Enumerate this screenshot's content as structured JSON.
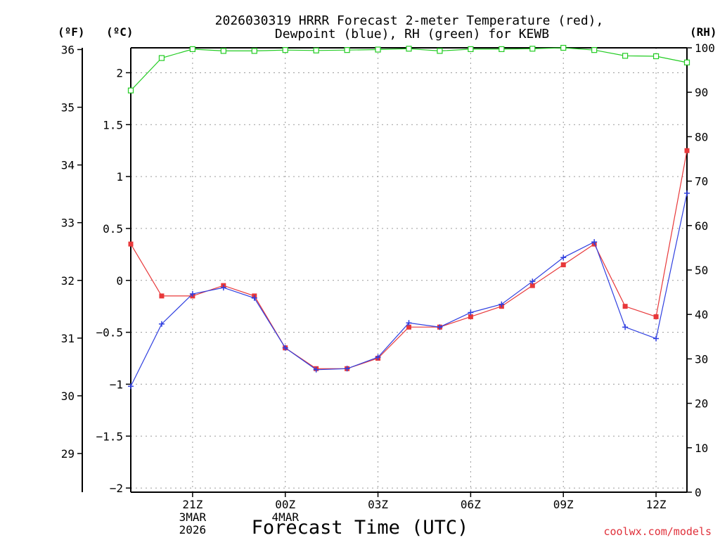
{
  "chart_data": {
    "type": "line",
    "title_line1": "2026030319 HRRR Forecast 2-meter Temperature (red),",
    "title_line2": "Dewpoint (blue), RH (green) for KEWB",
    "xlabel": "Forecast Time (UTC)",
    "unit_f": "(ºF)",
    "unit_c": "(ºC)",
    "unit_rh": "(RH)",
    "credit": "coolwx.com/models",
    "x_hours": [
      19,
      20,
      21,
      22,
      23,
      24,
      25,
      26,
      27,
      28,
      29,
      30,
      31,
      32,
      33,
      34,
      35,
      36,
      37
    ],
    "x_ticks": [
      {
        "hour": 21,
        "lines": [
          "21Z",
          "3MAR",
          "2026"
        ]
      },
      {
        "hour": 24,
        "lines": [
          "00Z",
          "4MAR"
        ]
      },
      {
        "hour": 27,
        "lines": [
          "03Z"
        ]
      },
      {
        "hour": 30,
        "lines": [
          "06Z"
        ]
      },
      {
        "hour": 33,
        "lines": [
          "09Z"
        ]
      },
      {
        "hour": 36,
        "lines": [
          "12Z"
        ]
      }
    ],
    "x_range": [
      19,
      37
    ],
    "ylim_c": [
      -2.04,
      2.24
    ],
    "ylim_f": [
      28.33,
      36.03
    ],
    "ylim_rh": [
      0,
      100
    ],
    "y_ticks_c": [
      "2",
      "1.5",
      "1",
      "0.5",
      "0",
      "−0.5",
      "−1",
      "−1.5",
      "−2"
    ],
    "y_tick_values_c": [
      2,
      1.5,
      1,
      0.5,
      0,
      -0.5,
      -1,
      -1.5,
      -2
    ],
    "y_ticks_f": [
      "36",
      "35",
      "34",
      "33",
      "32",
      "31",
      "30",
      "29"
    ],
    "y_tick_values_f": [
      36,
      35,
      34,
      33,
      32,
      31,
      30,
      29
    ],
    "y_ticks_rh": [
      "100",
      "90",
      "80",
      "70",
      "60",
      "50",
      "40",
      "30",
      "20",
      "10",
      "0"
    ],
    "y_tick_values_rh": [
      100,
      90,
      80,
      70,
      60,
      50,
      40,
      30,
      20,
      10,
      0
    ],
    "series": [
      {
        "name": "Temperature",
        "unit": "C",
        "color": "#e8383a",
        "marker": "square",
        "values": [
          0.35,
          -0.15,
          -0.15,
          -0.05,
          -0.15,
          -0.65,
          -0.85,
          -0.85,
          -0.75,
          -0.45,
          -0.45,
          -0.35,
          -0.25,
          -0.05,
          0.15,
          0.35,
          -0.25,
          -0.35,
          1.25
        ]
      },
      {
        "name": "Dewpoint",
        "unit": "C",
        "color": "#2f3fe0",
        "marker": "plus",
        "values": [
          -1.02,
          -0.42,
          -0.13,
          -0.07,
          -0.17,
          -0.65,
          -0.86,
          -0.85,
          -0.74,
          -0.41,
          -0.45,
          -0.31,
          -0.23,
          -0.01,
          0.22,
          0.37,
          -0.45,
          -0.56,
          0.84
        ]
      },
      {
        "name": "RH",
        "unit": "%",
        "color": "#22cc22",
        "marker": "open-square",
        "values": [
          90.4,
          97.7,
          99.7,
          99.3,
          99.3,
          99.5,
          99.4,
          99.5,
          99.6,
          99.8,
          99.3,
          99.7,
          99.7,
          99.8,
          100.0,
          99.5,
          98.2,
          98.1,
          96.7
        ]
      }
    ]
  }
}
